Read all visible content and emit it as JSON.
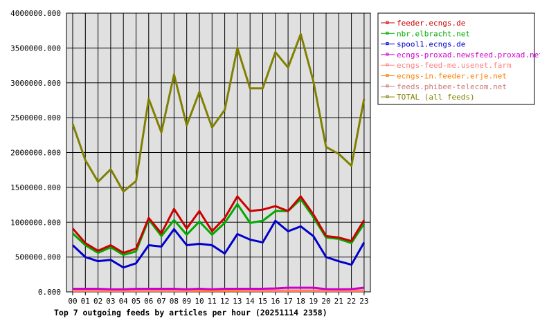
{
  "chart_data": {
    "type": "line",
    "title": "Top 7 outgoing feeds by articles per hour (20251114 2358)",
    "xlabel": "",
    "ylabel": "",
    "categories": [
      "00",
      "01",
      "02",
      "03",
      "04",
      "05",
      "06",
      "07",
      "08",
      "09",
      "10",
      "11",
      "12",
      "13",
      "14",
      "15",
      "16",
      "17",
      "18",
      "19",
      "20",
      "21",
      "22",
      "23"
    ],
    "ylim": [
      0,
      4000000
    ],
    "yticks": [
      "0.000",
      "500000.000",
      "1000000.000",
      "1500000.000",
      "2000000.000",
      "2500000.000",
      "3000000.000",
      "3500000.000",
      "4000000.000"
    ],
    "grid": true,
    "legend_placement": "right",
    "series": [
      {
        "name": "feeder.ecngs.de",
        "color": "#cc0000",
        "values": [
          910000,
          700000,
          590000,
          670000,
          560000,
          620000,
          1060000,
          840000,
          1190000,
          910000,
          1160000,
          870000,
          1060000,
          1370000,
          1160000,
          1180000,
          1230000,
          1160000,
          1370000,
          1110000,
          800000,
          780000,
          730000,
          1030000
        ]
      },
      {
        "name": "nbr.elbracht.net",
        "color": "#00aa00",
        "values": [
          840000,
          670000,
          560000,
          640000,
          530000,
          580000,
          1040000,
          800000,
          1030000,
          820000,
          1010000,
          820000,
          990000,
          1260000,
          990000,
          1020000,
          1160000,
          1160000,
          1330000,
          1070000,
          780000,
          760000,
          700000,
          980000
        ]
      },
      {
        "name": "spool1.ecngs.de",
        "color": "#0000cc",
        "values": [
          670000,
          500000,
          440000,
          460000,
          350000,
          410000,
          670000,
          650000,
          900000,
          670000,
          690000,
          670000,
          550000,
          830000,
          750000,
          710000,
          1020000,
          870000,
          940000,
          800000,
          500000,
          440000,
          390000,
          710000
        ]
      },
      {
        "name": "ecngs-proxad.newsfeed.proxad.net",
        "color": "#cc00cc",
        "values": [
          45000,
          45000,
          45000,
          37000,
          37000,
          45000,
          45000,
          45000,
          45000,
          37000,
          45000,
          37000,
          45000,
          45000,
          45000,
          45000,
          50000,
          60000,
          60000,
          60000,
          40000,
          37000,
          40000,
          60000
        ]
      },
      {
        "name": "ecngs-feed-me.usenet.farm",
        "color": "#ff8080",
        "values": [
          20000,
          20000,
          20000,
          20000,
          20000,
          20000,
          20000,
          20000,
          20000,
          20000,
          30000,
          30000,
          30000,
          30000,
          20000,
          20000,
          20000,
          20000,
          20000,
          20000,
          20000,
          20000,
          20000,
          20000
        ]
      },
      {
        "name": "ecngs-in.feeder.erje.net",
        "color": "#ff8000",
        "values": [
          15000,
          15000,
          15000,
          15000,
          15000,
          15000,
          15000,
          15000,
          15000,
          15000,
          15000,
          15000,
          15000,
          15000,
          15000,
          15000,
          15000,
          15000,
          15000,
          15000,
          15000,
          15000,
          15000,
          15000
        ]
      },
      {
        "name": "feeds.phibee-telecom.net",
        "color": "#cc7777",
        "values": [
          20000,
          20000,
          20000,
          20000,
          20000,
          20000,
          20000,
          20000,
          20000,
          20000,
          20000,
          20000,
          20000,
          20000,
          20000,
          20000,
          20000,
          20000,
          20000,
          20000,
          20000,
          20000,
          20000,
          20000
        ]
      },
      {
        "name": "TOTAL (all feeds)",
        "color": "#808000",
        "values": [
          2410000,
          1890000,
          1580000,
          1760000,
          1440000,
          1590000,
          2770000,
          2290000,
          3120000,
          2390000,
          2870000,
          2360000,
          2610000,
          3500000,
          2920000,
          2920000,
          3440000,
          3220000,
          3700000,
          3020000,
          2080000,
          1980000,
          1810000,
          2770000
        ]
      }
    ]
  }
}
